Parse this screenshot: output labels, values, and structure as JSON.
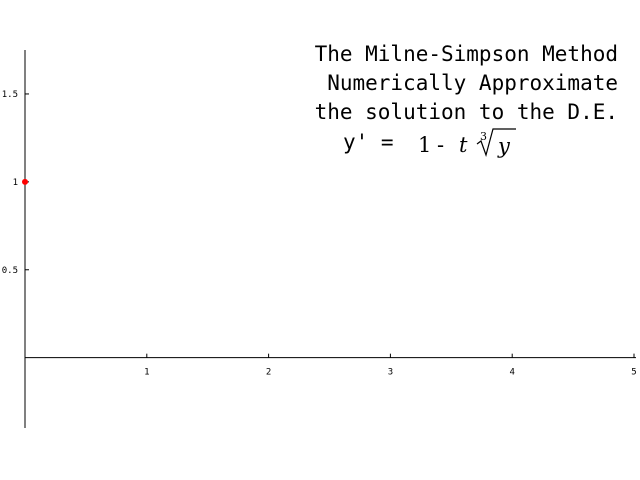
{
  "chart_data": {
    "type": "scatter",
    "title_lines": [
      "The Milne-Simpson Method",
      "Numerically Approximate",
      "the solution to the D.E."
    ],
    "equation": {
      "lhs": "y' =",
      "one": "1",
      "minus": "-",
      "t": "t",
      "root_index": "3",
      "radicand": "y"
    },
    "xlim": [
      0,
      5
    ],
    "ylim": [
      -0.4,
      1.75
    ],
    "x_ticks": [
      {
        "value": 1,
        "label": "1"
      },
      {
        "value": 2,
        "label": "2"
      },
      {
        "value": 3,
        "label": "3"
      },
      {
        "value": 4,
        "label": "4"
      },
      {
        "value": 5,
        "label": "5"
      }
    ],
    "y_ticks": [
      {
        "value": 0.5,
        "label": "0.5"
      },
      {
        "value": 1,
        "label": "1"
      },
      {
        "value": 1.5,
        "label": "1.5"
      }
    ],
    "points": [
      {
        "x": 0,
        "y": 1
      }
    ],
    "point_color": "#ff0000",
    "grid": false,
    "legend": "none"
  }
}
